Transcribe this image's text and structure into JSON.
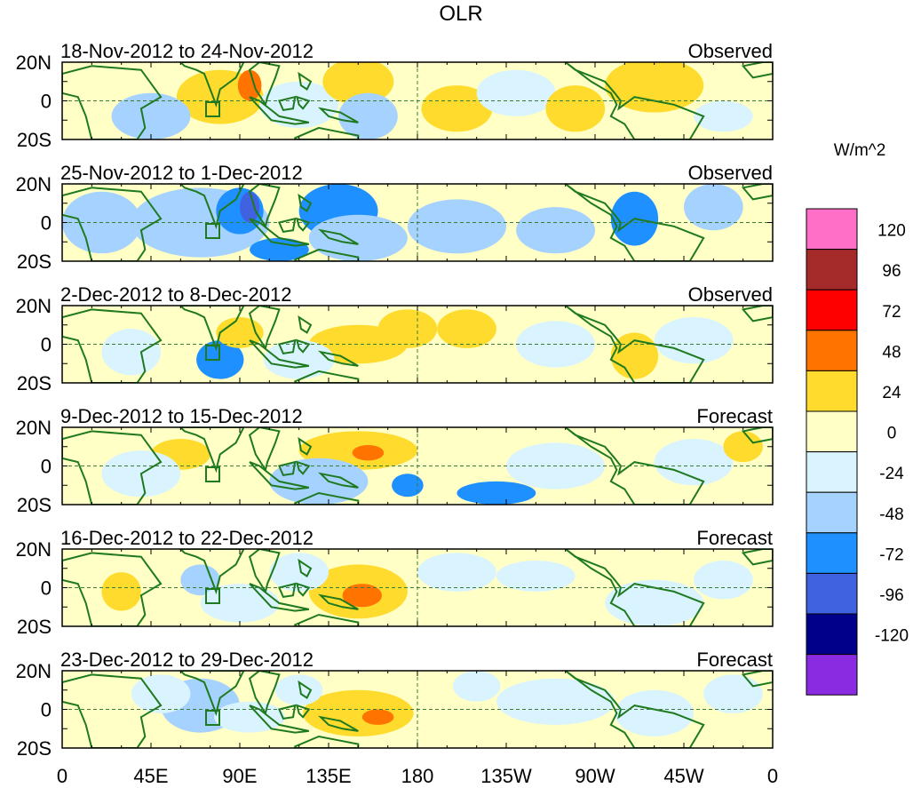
{
  "title": "OLR",
  "units": "W/m^2",
  "colors": {
    "frame": "#000000",
    "coast": "#1f7a1f",
    "box": "#1f7a1f",
    "guide": "#3a7d3a"
  },
  "lat_labels": [
    "20N",
    "0",
    "20S"
  ],
  "lon_labels": [
    "0",
    "45E",
    "90E",
    "135E",
    "180",
    "135W",
    "90W",
    "45W",
    "0"
  ],
  "panels": [
    {
      "period": "18-Nov-2012 to 24-Nov-2012",
      "status": "Observed"
    },
    {
      "period": "25-Nov-2012 to 1-Dec-2012",
      "status": "Observed"
    },
    {
      "period": "2-Dec-2012 to 8-Dec-2012",
      "status": "Observed"
    },
    {
      "period": "9-Dec-2012 to 15-Dec-2012",
      "status": "Forecast"
    },
    {
      "period": "16-Dec-2012 to 22-Dec-2012",
      "status": "Forecast"
    },
    {
      "period": "23-Dec-2012 to 29-Dec-2012",
      "status": "Forecast"
    }
  ],
  "legend": {
    "labels": [
      "120",
      "96",
      "72",
      "48",
      "24",
      "0",
      "-24",
      "-48",
      "-72",
      "-96",
      "-120"
    ],
    "colors": [
      "#ff6ec7",
      "#a52a2a",
      "#ff0000",
      "#ff7300",
      "#ffdb2e",
      "#ffffc6",
      "#d9f4ff",
      "#a6d2ff",
      "#1e90ff",
      "#4062e0",
      "#00008b",
      "#8a2be2"
    ]
  }
}
